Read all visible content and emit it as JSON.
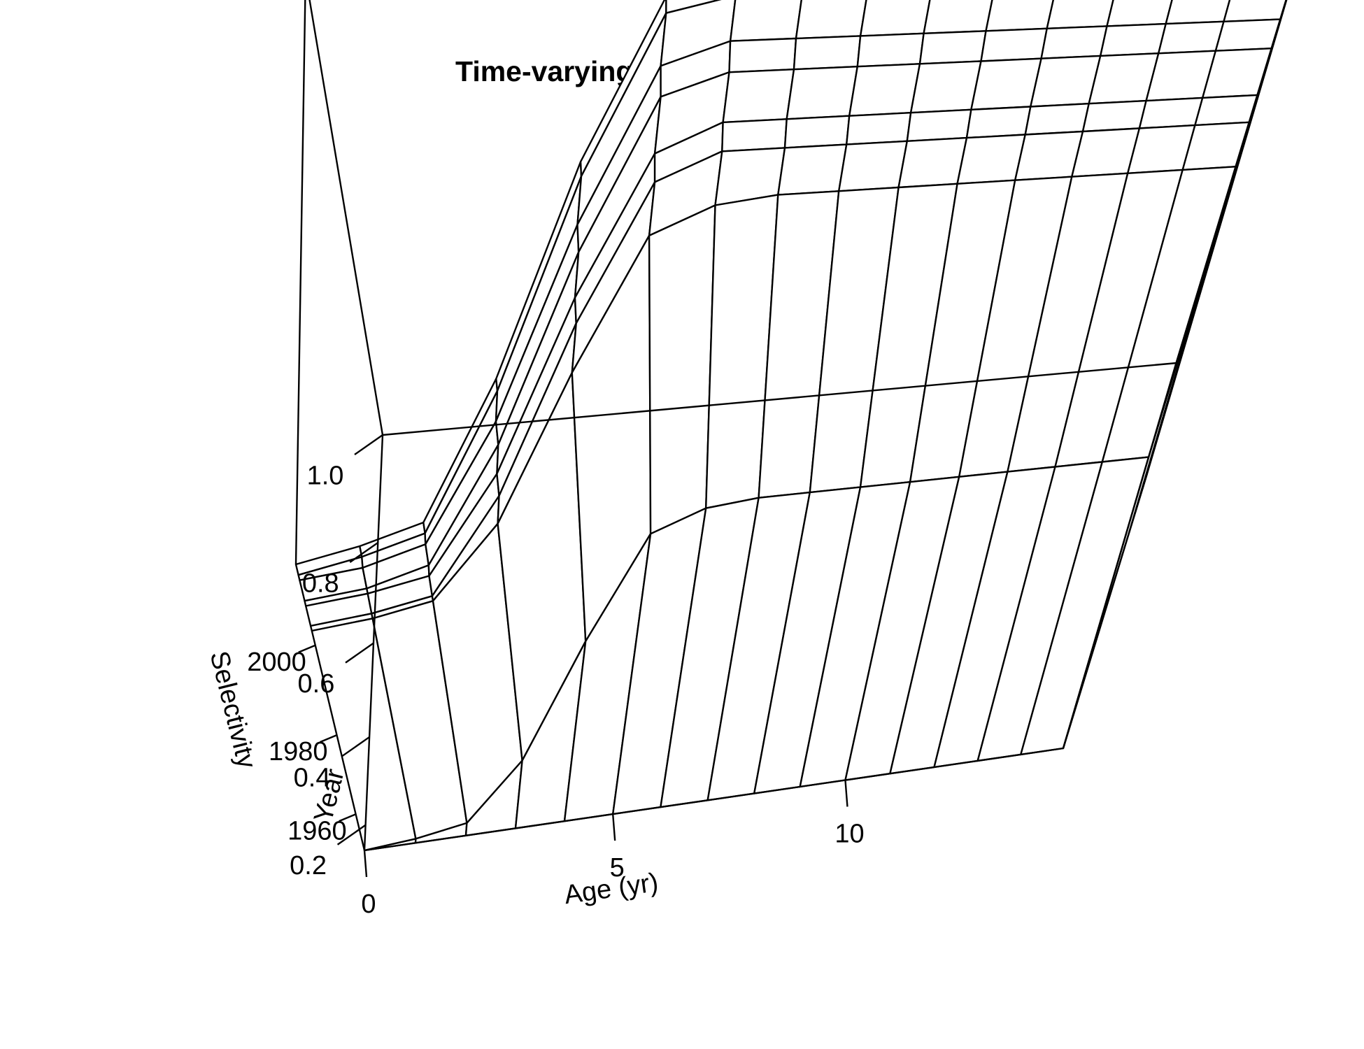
{
  "chart_data": {
    "type": "surface",
    "title": "Time-varying selectivity for CM_W_IFQ",
    "xlabel": "Age (yr)",
    "ylabel": "Year",
    "zlabel": "Selectivity",
    "x_ticks": [
      "0",
      "5",
      "10"
    ],
    "y_ticks": [
      "1960",
      "1980",
      "2000"
    ],
    "z_ticks": [
      "0.2",
      "0.4",
      "0.6",
      "0.8",
      "1.0"
    ],
    "xlim": [
      0,
      15
    ],
    "ylim": [
      1950,
      2016
    ],
    "zlim": [
      0.14,
      1.0
    ],
    "ages": [
      0,
      1,
      2,
      3,
      4,
      5,
      6,
      7,
      8,
      9,
      10,
      11,
      12,
      13,
      14,
      15
    ],
    "years": [
      1950,
      2003,
      2004,
      2008,
      2009,
      2013,
      2014,
      2016
    ],
    "selectivity": [
      [
        0.14,
        0.15,
        0.17,
        0.3,
        0.55,
        0.76,
        0.8,
        0.81,
        0.81,
        0.81,
        0.81,
        0.81,
        0.81,
        0.81,
        0.81,
        0.81
      ],
      [
        0.14,
        0.15,
        0.17,
        0.3,
        0.55,
        0.76,
        0.8,
        0.81,
        0.81,
        0.81,
        0.81,
        0.81,
        0.81,
        0.81,
        0.81,
        0.81
      ],
      [
        0.14,
        0.15,
        0.17,
        0.34,
        0.62,
        0.83,
        0.87,
        0.87,
        0.87,
        0.87,
        0.87,
        0.87,
        0.87,
        0.87,
        0.87,
        0.87
      ],
      [
        0.14,
        0.15,
        0.17,
        0.34,
        0.62,
        0.83,
        0.87,
        0.87,
        0.87,
        0.87,
        0.87,
        0.87,
        0.87,
        0.87,
        0.87,
        0.87
      ],
      [
        0.14,
        0.15,
        0.18,
        0.38,
        0.68,
        0.9,
        0.93,
        0.93,
        0.93,
        0.93,
        0.93,
        0.93,
        0.93,
        0.93,
        0.93,
        0.93
      ],
      [
        0.14,
        0.15,
        0.18,
        0.38,
        0.68,
        0.9,
        0.93,
        0.93,
        0.93,
        0.93,
        0.93,
        0.93,
        0.93,
        0.93,
        0.93,
        0.93
      ],
      [
        0.14,
        0.16,
        0.19,
        0.42,
        0.74,
        0.96,
        0.98,
        0.98,
        0.98,
        0.98,
        0.98,
        0.98,
        0.98,
        0.98,
        0.98,
        0.98
      ],
      [
        0.14,
        0.16,
        0.19,
        0.42,
        0.74,
        0.96,
        0.98,
        0.98,
        0.98,
        0.98,
        0.98,
        0.98,
        0.98,
        0.98,
        0.98,
        0.98
      ]
    ],
    "grid": false,
    "legend": "none"
  }
}
